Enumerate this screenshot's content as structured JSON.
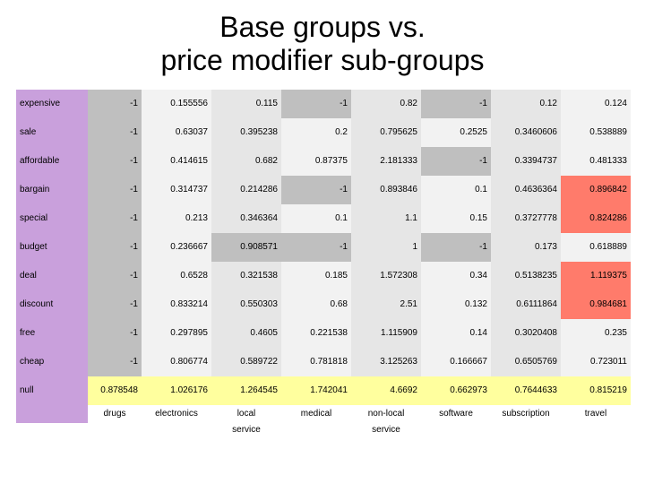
{
  "title_line1": "Base groups vs.",
  "title_line2": "price modifier sub-groups",
  "colors": {
    "rowlabel_bg": "#c9a0dc",
    "hl_red": "#ff7b6b",
    "hl_yellow": "#ffff9e",
    "zebra_light": "#e6e6e6",
    "zebra_dark": "#bfbfbf",
    "background": "#ffffff",
    "text": "#000000"
  },
  "font": {
    "title_size": 32,
    "cell_size": 10,
    "family": "Arial"
  },
  "columns": [
    "drugs",
    "electronics",
    "local",
    "medical",
    "non-local",
    "software",
    "subscription",
    "travel"
  ],
  "column_sub": [
    "",
    "",
    "service",
    "",
    "service",
    "",
    "",
    ""
  ],
  "rows": [
    {
      "label": "expensive",
      "vals": [
        "-1",
        "0.155556",
        "0.115",
        "-1",
        "0.82",
        "-1",
        "0.12",
        "0.124"
      ],
      "hi": [
        1,
        0,
        0,
        1,
        0,
        1,
        0,
        0
      ]
    },
    {
      "label": "sale",
      "vals": [
        "-1",
        "0.63037",
        "0.395238",
        "0.2",
        "0.795625",
        "0.2525",
        "0.3460606",
        "0.538889"
      ],
      "hi": [
        1,
        0,
        0,
        0,
        0,
        0,
        0,
        0
      ]
    },
    {
      "label": "affordable",
      "vals": [
        "-1",
        "0.414615",
        "0.682",
        "0.87375",
        "2.181333",
        "-1",
        "0.3394737",
        "0.481333"
      ],
      "hi": [
        1,
        0,
        0,
        0,
        0,
        1,
        0,
        0
      ]
    },
    {
      "label": "bargain",
      "vals": [
        "-1",
        "0.314737",
        "0.214286",
        "-1",
        "0.893846",
        "0.1",
        "0.4636364",
        "0.896842"
      ],
      "hi": [
        1,
        0,
        0,
        1,
        0,
        0,
        0,
        2
      ]
    },
    {
      "label": "special",
      "vals": [
        "-1",
        "0.213",
        "0.346364",
        "0.1",
        "1.1",
        "0.15",
        "0.3727778",
        "0.824286"
      ],
      "hi": [
        1,
        0,
        0,
        0,
        0,
        0,
        0,
        2
      ]
    },
    {
      "label": "budget",
      "vals": [
        "-1",
        "0.236667",
        "0.908571",
        "-1",
        "1",
        "-1",
        "0.173",
        "0.618889"
      ],
      "hi": [
        1,
        0,
        1,
        1,
        0,
        1,
        0,
        0
      ]
    },
    {
      "label": "deal",
      "vals": [
        "-1",
        "0.6528",
        "0.321538",
        "0.185",
        "1.572308",
        "0.34",
        "0.5138235",
        "1.119375"
      ],
      "hi": [
        1,
        0,
        0,
        0,
        0,
        0,
        0,
        2
      ]
    },
    {
      "label": "discount",
      "vals": [
        "-1",
        "0.833214",
        "0.550303",
        "0.68",
        "2.51",
        "0.132",
        "0.6111864",
        "0.984681"
      ],
      "hi": [
        1,
        0,
        0,
        0,
        0,
        0,
        0,
        2
      ]
    },
    {
      "label": "free",
      "vals": [
        "-1",
        "0.297895",
        "0.4605",
        "0.221538",
        "1.115909",
        "0.14",
        "0.3020408",
        "0.235"
      ],
      "hi": [
        1,
        0,
        0,
        0,
        0,
        0,
        0,
        0
      ]
    },
    {
      "label": "cheap",
      "vals": [
        "-1",
        "0.806774",
        "0.589722",
        "0.781818",
        "3.125263",
        "0.166667",
        "0.6505769",
        "0.723011"
      ],
      "hi": [
        1,
        0,
        0,
        0,
        0,
        0,
        0,
        0
      ]
    },
    {
      "label": "null",
      "vals": [
        "0.878548",
        "1.026176",
        "1.264545",
        "1.742041",
        "4.6692",
        "0.662973",
        "0.7644633",
        "0.815219"
      ],
      "hi": [
        3,
        3,
        3,
        3,
        3,
        3,
        3,
        3
      ]
    }
  ]
}
